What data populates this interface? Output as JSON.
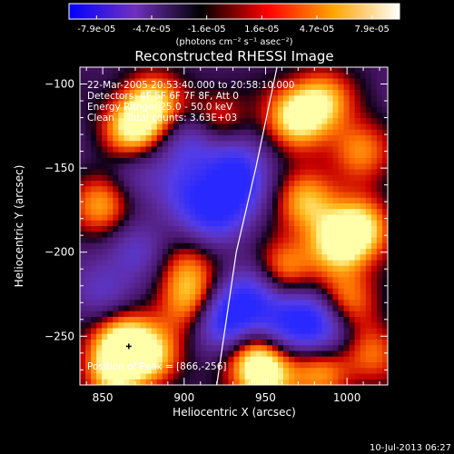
{
  "chart_data": {
    "type": "heatmap",
    "title": "Reconstructed RHESSI Image",
    "xlabel": "Heliocentric X (arcsec)",
    "ylabel": "Heliocentric Y (arcsec)",
    "xlim": [
      836,
      1025
    ],
    "ylim": [
      -279,
      -90
    ],
    "xticks": [
      850,
      900,
      950,
      1000
    ],
    "yticks": [
      -100,
      -150,
      -200,
      -250
    ],
    "colorbar": {
      "ticks": [
        "-7.9e-05",
        "-4.7e-05",
        "-1.6e-05",
        "1.6e-05",
        "4.7e-05",
        "7.9e-05"
      ],
      "range": [
        -7.9e-05,
        7.9e-05
      ],
      "unit_label": "(photons cm⁻² s⁻¹ asec⁻²)",
      "stops": [
        "#0000ff",
        "#7030c0",
        "#000000",
        "#ff0000",
        "#ffa500",
        "#ffffff"
      ]
    },
    "annotations": [
      "22-Mar-2005 20:53:40.000 to 20:58:10.000",
      "Detectors: 4F 5F 6F 7F 8F, Att 0",
      "Energy Range: 25.0 - 50.0 keV",
      "Clean    Total counts: 3.63E+03"
    ],
    "peak_label": "Position of Peak = [866,-256]",
    "peak": [
      866,
      -256
    ],
    "limb_line": [
      [
        957,
        -90
      ],
      [
        944,
        -150
      ],
      [
        932,
        -200
      ],
      [
        920,
        -279
      ]
    ],
    "blobs": [
      {
        "x": 868,
        "y": -128,
        "v": 0.95
      },
      {
        "x": 880,
        "y": -112,
        "v": 0.9
      },
      {
        "x": 850,
        "y": -172,
        "v": 0.75
      },
      {
        "x": 862,
        "y": -252,
        "v": 1.0
      },
      {
        "x": 880,
        "y": -262,
        "v": 0.85
      },
      {
        "x": 855,
        "y": -272,
        "v": 0.8
      },
      {
        "x": 905,
        "y": -230,
        "v": 0.7
      },
      {
        "x": 900,
        "y": -210,
        "v": 0.55
      },
      {
        "x": 968,
        "y": -120,
        "v": 0.95
      },
      {
        "x": 985,
        "y": -110,
        "v": 0.8
      },
      {
        "x": 1008,
        "y": -140,
        "v": 0.7
      },
      {
        "x": 975,
        "y": -170,
        "v": 0.85
      },
      {
        "x": 995,
        "y": -195,
        "v": 1.0
      },
      {
        "x": 1010,
        "y": -185,
        "v": 0.8
      },
      {
        "x": 960,
        "y": -210,
        "v": 0.7
      },
      {
        "x": 1000,
        "y": -228,
        "v": 0.65
      },
      {
        "x": 945,
        "y": -262,
        "v": 0.9
      },
      {
        "x": 950,
        "y": -276,
        "v": 0.8
      },
      {
        "x": 985,
        "y": -270,
        "v": 0.75
      },
      {
        "x": 1015,
        "y": -260,
        "v": 0.6
      },
      {
        "x": 920,
        "y": -120,
        "v": 0.5
      },
      {
        "x": 905,
        "y": -135,
        "v": -0.55
      },
      {
        "x": 930,
        "y": -150,
        "v": -0.75
      },
      {
        "x": 900,
        "y": -165,
        "v": -0.6
      },
      {
        "x": 918,
        "y": -178,
        "v": -0.7
      },
      {
        "x": 935,
        "y": -165,
        "v": -0.55
      },
      {
        "x": 870,
        "y": -200,
        "v": -0.5
      },
      {
        "x": 925,
        "y": -240,
        "v": -1.0
      },
      {
        "x": 942,
        "y": -225,
        "v": -0.7
      },
      {
        "x": 955,
        "y": -245,
        "v": -0.6
      },
      {
        "x": 975,
        "y": -240,
        "v": -0.8
      },
      {
        "x": 990,
        "y": -250,
        "v": -0.5
      },
      {
        "x": 870,
        "y": -150,
        "v": -0.4
      },
      {
        "x": 850,
        "y": -225,
        "v": -0.45
      }
    ]
  },
  "footer": {
    "timestamp": "10-Jul-2013 06:27"
  }
}
